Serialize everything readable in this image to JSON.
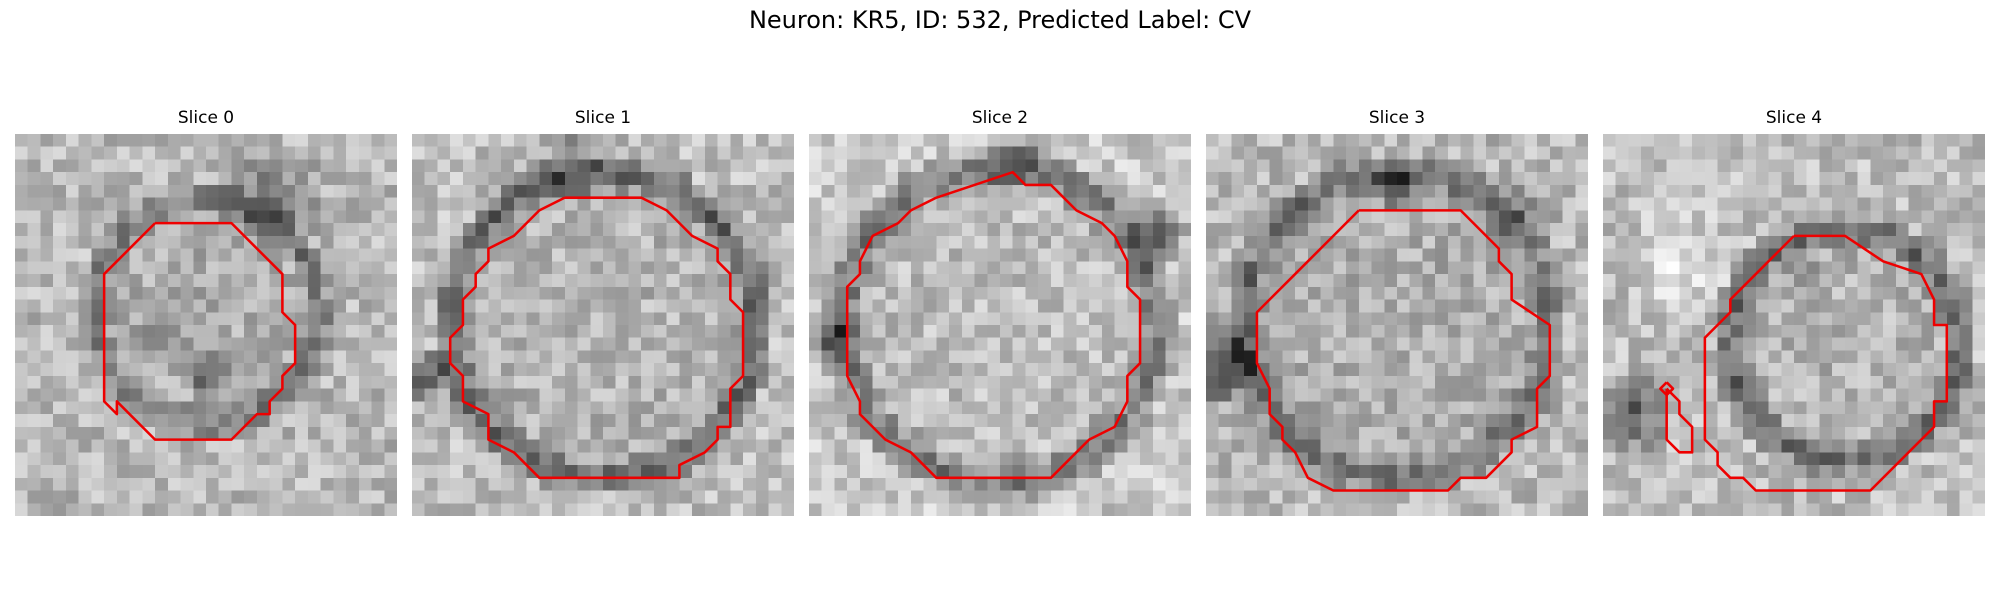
{
  "figure": {
    "title": "Neuron: KR5, ID: 532, Predicted Label: CV"
  },
  "panels": [
    {
      "title": "Slice 0"
    },
    {
      "title": "Slice 1"
    },
    {
      "title": "Slice 2"
    },
    {
      "title": "Slice 3"
    },
    {
      "title": "Slice 4"
    }
  ],
  "colors": {
    "contour": "#ee0000",
    "colormap": "gray"
  }
}
